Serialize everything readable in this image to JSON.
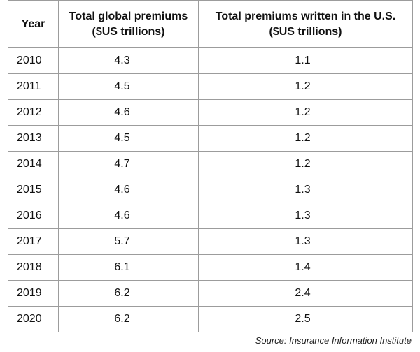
{
  "chart_data": {
    "type": "table",
    "columns": [
      {
        "line1": "Year",
        "line2": ""
      },
      {
        "line1": "Total global premiums",
        "line2": "($US trillions)"
      },
      {
        "line1": "Total premiums written in the U.S.",
        "line2": "($US trillions)"
      }
    ],
    "rows": [
      {
        "year": "2010",
        "global": "4.3",
        "us": "1.1"
      },
      {
        "year": "2011",
        "global": "4.5",
        "us": "1.2"
      },
      {
        "year": "2012",
        "global": "4.6",
        "us": "1.2"
      },
      {
        "year": "2013",
        "global": "4.5",
        "us": "1.2"
      },
      {
        "year": "2014",
        "global": "4.7",
        "us": "1.2"
      },
      {
        "year": "2015",
        "global": "4.6",
        "us": "1.3"
      },
      {
        "year": "2016",
        "global": "4.6",
        "us": "1.3"
      },
      {
        "year": "2017",
        "global": "5.7",
        "us": "1.3"
      },
      {
        "year": "2018",
        "global": "6.1",
        "us": "1.4"
      },
      {
        "year": "2019",
        "global": "6.2",
        "us": "2.4"
      },
      {
        "year": "2020",
        "global": "6.2",
        "us": "2.5"
      }
    ],
    "source": "Source: Insurance Information Institute"
  }
}
